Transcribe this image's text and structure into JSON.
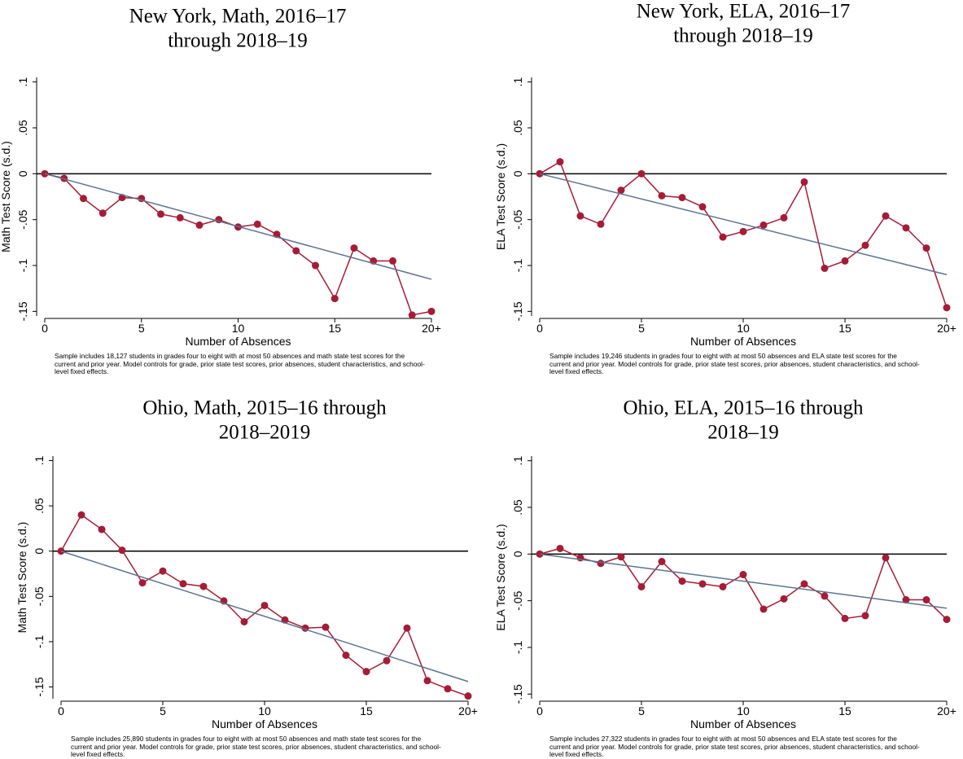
{
  "chart_data": [
    {
      "type": "line",
      "title": [
        "New York, Math, 2016–17",
        "through 2018–19"
      ],
      "x_label": "Number of Absences",
      "y_label": "Math Test Score (s.d.)",
      "note": "Sample includes 18,127 students in grades four to eight with at most 50 absences and math state test scores for the current and prior year. Model controls for grade, prior state test scores, prior absences, student characteristics, and school-level fixed effects.",
      "x": [
        0,
        1,
        2,
        3,
        4,
        5,
        6,
        7,
        8,
        9,
        10,
        11,
        12,
        13,
        14,
        15,
        16,
        17,
        18,
        19,
        20
      ],
      "xlim": [
        0,
        20
      ],
      "xticks": [
        0,
        5,
        10,
        15,
        {
          "value": 20,
          "label": "20+"
        }
      ],
      "ylim": [
        -0.155,
        0.105
      ],
      "yticks": [
        {
          "value": 0.1,
          "label": ".1"
        },
        {
          "value": 0.05,
          "label": ".05"
        },
        0,
        {
          "value": -0.05,
          "label": "-.05"
        },
        {
          "value": -0.1,
          "label": "-.1"
        },
        {
          "value": -0.15,
          "label": "-.15"
        }
      ],
      "reference_line": 0,
      "reference_color": "#000000",
      "series": [
        {
          "color": "#a51c36",
          "values": [
            0,
            -0.005,
            -0.027,
            -0.043,
            -0.026,
            -0.027,
            -0.044,
            -0.048,
            -0.056,
            -0.05,
            -0.058,
            -0.055,
            -0.066,
            -0.084,
            -0.1,
            -0.136,
            -0.081,
            -0.095,
            -0.095,
            -0.154,
            -0.15
          ],
          "markers": true
        },
        {
          "color": "#5b7490",
          "x": [
            0,
            20
          ],
          "values": [
            0,
            -0.115
          ],
          "markers": false
        }
      ]
    },
    {
      "type": "line",
      "title": [
        "New York, ELA, 2016–17",
        "through 2018–19"
      ],
      "x_label": "Number of Absences",
      "y_label": "ELA Test Score (s.d.)",
      "note": "Sample includes 19,246 students in grades four to eight with at most 50 absences and ELA state test scores for the current and prior year. Model controls for grade, prior state test scores, prior absences, student characteristics, and school-level fixed effects.",
      "x": [
        0,
        1,
        2,
        3,
        4,
        5,
        6,
        7,
        8,
        9,
        10,
        11,
        12,
        13,
        14,
        15,
        16,
        17,
        18,
        19,
        20
      ],
      "xlim": [
        0,
        20
      ],
      "xticks": [
        0,
        5,
        10,
        15,
        {
          "value": 20,
          "label": "20+"
        }
      ],
      "ylim": [
        -0.155,
        0.105
      ],
      "yticks": [
        {
          "value": 0.1,
          "label": ".1"
        },
        {
          "value": 0.05,
          "label": ".05"
        },
        0,
        {
          "value": -0.05,
          "label": "-.05"
        },
        {
          "value": -0.1,
          "label": "-.1"
        },
        {
          "value": -0.15,
          "label": "-.15"
        }
      ],
      "reference_line": 0,
      "reference_color": "#000000",
      "series": [
        {
          "color": "#a51c36",
          "values": [
            0,
            0.013,
            -0.046,
            -0.055,
            -0.018,
            0,
            -0.024,
            -0.026,
            -0.036,
            -0.069,
            -0.063,
            -0.056,
            -0.048,
            -0.009,
            -0.103,
            -0.095,
            -0.078,
            -0.046,
            -0.059,
            -0.081,
            -0.146
          ],
          "markers": true
        },
        {
          "color": "#5b7490",
          "x": [
            0,
            20
          ],
          "values": [
            0,
            -0.11
          ],
          "markers": false
        }
      ]
    },
    {
      "type": "line",
      "title": [
        "Ohio, Math, 2015–16 through",
        "2018–2019"
      ],
      "x_label": "Number of Absences",
      "y_label": "Math Test Score (s.d.)",
      "note": "Sample includes 25,890 students in grades four to eight with at most 50 absences and math state test scores for the current and prior year. Model controls for grade, prior state test scores, prior absences, student characteristics, and school-level fixed effects.",
      "x": [
        0,
        1,
        2,
        3,
        4,
        5,
        6,
        7,
        8,
        9,
        10,
        11,
        12,
        13,
        14,
        15,
        16,
        17,
        18,
        19,
        20
      ],
      "xlim": [
        0,
        20
      ],
      "xticks": [
        0,
        5,
        10,
        15,
        {
          "value": 20,
          "label": "20+"
        }
      ],
      "ylim": [
        -0.163,
        0.105
      ],
      "yticks": [
        {
          "value": 0.1,
          "label": ".1"
        },
        {
          "value": 0.05,
          "label": ".05"
        },
        0,
        {
          "value": -0.05,
          "label": "-.05"
        },
        {
          "value": -0.1,
          "label": "-.1"
        },
        {
          "value": -0.15,
          "label": "-.15"
        }
      ],
      "reference_line": 0,
      "reference_color": "#000000",
      "series": [
        {
          "color": "#a51c36",
          "values": [
            0,
            0.04,
            0.024,
            0.001,
            -0.035,
            -0.022,
            -0.036,
            -0.039,
            -0.055,
            -0.078,
            -0.06,
            -0.076,
            -0.085,
            -0.084,
            -0.115,
            -0.133,
            -0.121,
            -0.085,
            -0.143,
            -0.152,
            -0.16
          ],
          "markers": true
        },
        {
          "color": "#5b7490",
          "x": [
            0,
            20
          ],
          "values": [
            0,
            -0.144
          ],
          "markers": false
        }
      ]
    },
    {
      "type": "line",
      "title": [
        "Ohio, ELA, 2015–16 through",
        "2018–19"
      ],
      "x_label": "Number of Absences",
      "y_label": "ELA Test Score (s.d.)",
      "note": "Sample includes 27,322 students in grades four to eight with at most 50 absences and ELA state test scores for the current and prior year. Model controls for grade, prior state test scores, prior absences, student characteristics, and school-level fixed effects.",
      "x": [
        0,
        1,
        2,
        3,
        4,
        5,
        6,
        7,
        8,
        9,
        10,
        11,
        12,
        13,
        14,
        15,
        16,
        17,
        18,
        19,
        20
      ],
      "xlim": [
        0,
        20
      ],
      "xticks": [
        0,
        5,
        10,
        15,
        {
          "value": 20,
          "label": "20+"
        }
      ],
      "ylim": [
        -0.155,
        0.105
      ],
      "yticks": [
        {
          "value": 0.1,
          "label": ".1"
        },
        {
          "value": 0.05,
          "label": ".05"
        },
        0,
        {
          "value": -0.05,
          "label": "-.05"
        },
        {
          "value": -0.1,
          "label": "-.1"
        },
        {
          "value": -0.15,
          "label": "-.15"
        }
      ],
      "reference_line": 0,
      "reference_color": "#000000",
      "series": [
        {
          "color": "#a51c36",
          "values": [
            0,
            0.006,
            -0.004,
            -0.01,
            -0.003,
            -0.035,
            -0.008,
            -0.029,
            -0.032,
            -0.035,
            -0.022,
            -0.059,
            -0.048,
            -0.032,
            -0.045,
            -0.069,
            -0.066,
            -0.004,
            -0.049,
            -0.049,
            -0.07
          ],
          "markers": true
        },
        {
          "color": "#5b7490",
          "x": [
            0,
            20
          ],
          "values": [
            0,
            -0.058
          ],
          "markers": false
        }
      ]
    }
  ]
}
